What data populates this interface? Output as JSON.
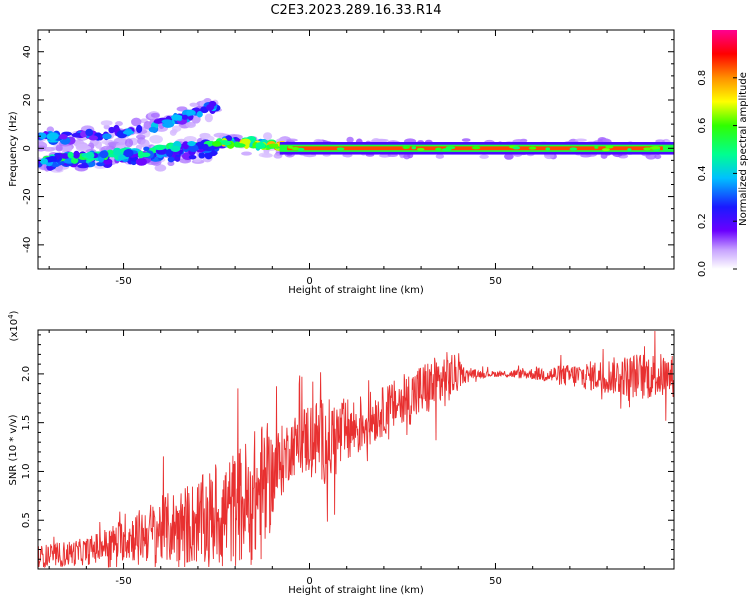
{
  "title": "C2E3.2023.289.16.33.R14",
  "chart_data": [
    {
      "type": "heatmap",
      "xlabel": "Height of straight line (km)",
      "ylabel": "Frequency (Hz)",
      "xlim": [
        -73,
        98
      ],
      "ylim": [
        -50,
        49
      ],
      "xticks": [
        -50,
        0,
        50
      ],
      "yticks": [
        -40,
        -20,
        0,
        20,
        40
      ],
      "colorbar": {
        "label": "Normalized spectral amplitude",
        "range": [
          0,
          1
        ],
        "ticks": [
          "0.0",
          "0.2",
          "0.4",
          "0.6",
          "0.8"
        ]
      },
      "features": [
        {
          "name": "upper branch",
          "x": [
            -73,
            -60,
            -45,
            -35,
            -28,
            -25
          ],
          "y": [
            4,
            5,
            8,
            12,
            16,
            18
          ]
        },
        {
          "name": "main branch",
          "x": [
            -73,
            -55,
            -40,
            -30,
            -20,
            -10,
            0,
            20,
            50,
            80,
            98
          ],
          "y": [
            -5,
            -3,
            -1,
            1,
            3,
            1.5,
            0,
            0,
            0,
            0,
            0
          ]
        },
        {
          "name": "lower branch",
          "x": [
            -73,
            -50,
            -35,
            -25
          ],
          "y": [
            -7,
            -5,
            -3,
            -1
          ]
        }
      ]
    },
    {
      "type": "line",
      "xlabel": "Height of straight line (km)",
      "ylabel": "SNR (10 * v/v)",
      "y_multiplier": "(x10^4)",
      "xlim": [
        -73,
        98
      ],
      "ylim": [
        0,
        2.45
      ],
      "xticks": [
        -50,
        0,
        50
      ],
      "yticks": [
        0.5,
        1.0,
        1.5,
        2.0
      ],
      "color": "#e83030",
      "envelope": {
        "x": [
          -73,
          -60,
          -50,
          -40,
          -30,
          -20,
          -12,
          -10,
          -5,
          0,
          5,
          10,
          20,
          30,
          38,
          42,
          50,
          60,
          70,
          80,
          90,
          98
        ],
        "mid": [
          0.12,
          0.18,
          0.3,
          0.4,
          0.48,
          0.62,
          0.8,
          0.95,
          1.25,
          1.35,
          1.3,
          1.4,
          1.62,
          1.82,
          1.97,
          2.0,
          2.0,
          2.0,
          1.98,
          1.98,
          1.98,
          1.98
        ],
        "amp": [
          0.12,
          0.14,
          0.22,
          0.35,
          0.45,
          0.6,
          0.75,
          0.45,
          0.3,
          0.4,
          0.45,
          0.35,
          0.25,
          0.3,
          0.28,
          0.05,
          0.03,
          0.06,
          0.12,
          0.18,
          0.25,
          0.22
        ]
      }
    }
  ]
}
